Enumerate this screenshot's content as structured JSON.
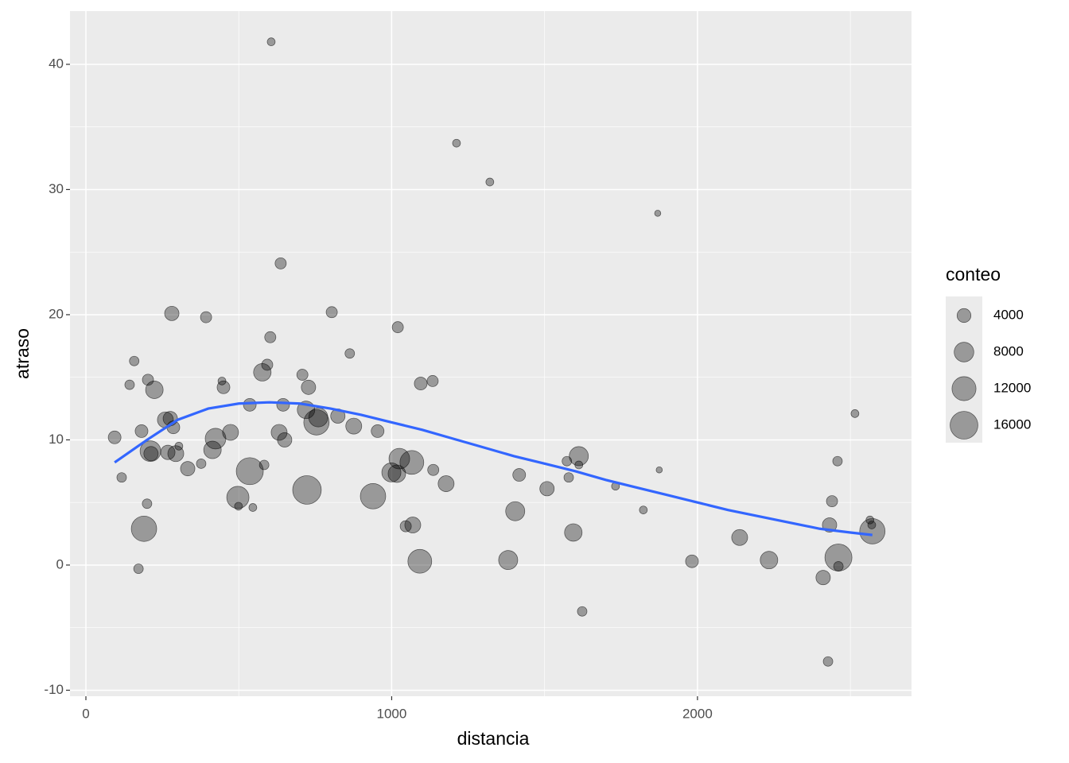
{
  "chart_data": {
    "type": "scatter",
    "x_label": "distancia",
    "y_label": "atraso",
    "xlim": [
      -52,
      2700
    ],
    "ylim": [
      -10.48,
      44.25
    ],
    "xticks": [
      0,
      1000,
      2000
    ],
    "yticks": [
      -10,
      0,
      10,
      20,
      30,
      40
    ],
    "grid": true,
    "point_color": "#000000",
    "x": [
      94,
      117,
      143,
      158,
      172,
      182,
      190,
      200,
      203,
      211,
      224,
      213,
      260,
      268,
      281,
      276,
      286,
      294,
      304,
      333,
      377,
      393,
      414,
      424,
      445,
      450,
      473,
      497,
      499,
      536,
      536,
      546,
      577,
      583,
      593,
      603,
      606,
      632,
      637,
      645,
      650,
      708,
      723,
      728,
      720,
      754,
      760,
      804,
      824,
      863,
      876,
      939,
      954,
      999,
      1020,
      1025,
      1017,
      1046,
      1069,
      1066,
      1092,
      1095,
      1134,
      1136,
      1178,
      1212,
      1321,
      1381,
      1404,
      1417,
      1508,
      1573,
      1579,
      1594,
      1612,
      1612,
      1623,
      1732,
      1823,
      1870,
      1875,
      1982,
      2138,
      2234,
      2411,
      2427,
      2432,
      2440,
      2458,
      2461,
      2461,
      2515,
      2564,
      2570,
      2572
    ],
    "values": [
      10.2,
      7.0,
      14.4,
      16.3,
      -0.3,
      10.7,
      2.9,
      4.9,
      14.8,
      9.1,
      14.0,
      8.9,
      11.6,
      9.0,
      20.1,
      11.7,
      11.0,
      8.9,
      9.5,
      7.7,
      8.1,
      19.8,
      9.2,
      10.1,
      14.7,
      14.2,
      10.6,
      5.4,
      4.7,
      7.5,
      12.8,
      4.6,
      15.4,
      8.0,
      16.0,
      18.2,
      41.8,
      10.6,
      24.1,
      12.8,
      10.0,
      15.2,
      6.0,
      14.2,
      12.4,
      11.4,
      11.8,
      20.2,
      11.9,
      16.9,
      11.1,
      5.5,
      10.7,
      7.4,
      19.0,
      8.5,
      7.3,
      3.1,
      3.2,
      8.2,
      0.3,
      14.5,
      14.7,
      7.6,
      6.5,
      33.7,
      30.6,
      0.4,
      4.3,
      7.2,
      6.1,
      8.3,
      7.0,
      2.6,
      8.7,
      8.0,
      -3.7,
      6.3,
      4.4,
      28.1,
      7.6,
      0.3,
      2.2,
      0.4,
      -1.0,
      -7.7,
      3.2,
      5.1,
      8.3,
      -0.1,
      0.6,
      12.1,
      3.6,
      3.2,
      2.7
    ],
    "sizes": [
      3400,
      1900,
      1900,
      1900,
      1900,
      3400,
      13400,
      1900,
      2600,
      8900,
      6400,
      4300,
      5300,
      4300,
      4300,
      4300,
      3400,
      5300,
      1300,
      4300,
      1900,
      2600,
      6400,
      8900,
      1300,
      3400,
      5300,
      10300,
      1300,
      15200,
      3400,
      1300,
      6400,
      1900,
      2600,
      2600,
      1300,
      5300,
      2600,
      3400,
      4300,
      2600,
      17000,
      4300,
      6400,
      13400,
      7600,
      2600,
      4300,
      1900,
      5300,
      13400,
      3400,
      7600,
      2600,
      8900,
      6400,
      2600,
      5300,
      11800,
      11800,
      3400,
      2600,
      2600,
      5300,
      1300,
      1300,
      7600,
      7600,
      3400,
      4300,
      1900,
      1900,
      6400,
      7600,
      1300,
      1900,
      1300,
      1300,
      800,
      800,
      3400,
      5300,
      6400,
      4300,
      1900,
      4300,
      2600,
      1900,
      1900,
      15200,
      1300,
      1300,
      1300,
      13400
    ],
    "smooth": {
      "color": "#3366FF",
      "x": [
        94,
        200,
        300,
        400,
        500,
        600,
        700,
        800,
        900,
        1000,
        1100,
        1200,
        1300,
        1400,
        1500,
        1600,
        1700,
        1800,
        1900,
        2000,
        2100,
        2200,
        2300,
        2400,
        2500,
        2572
      ],
      "values": [
        8.2,
        10.0,
        11.6,
        12.5,
        12.9,
        13.0,
        12.9,
        12.5,
        12.0,
        11.4,
        10.8,
        10.1,
        9.4,
        8.7,
        8.1,
        7.5,
        6.8,
        6.2,
        5.6,
        5.0,
        4.4,
        3.9,
        3.4,
        2.9,
        2.6,
        2.4
      ]
    },
    "size_legend": {
      "title": "conteo",
      "values": [
        4000,
        8000,
        12000,
        16000
      ]
    }
  }
}
